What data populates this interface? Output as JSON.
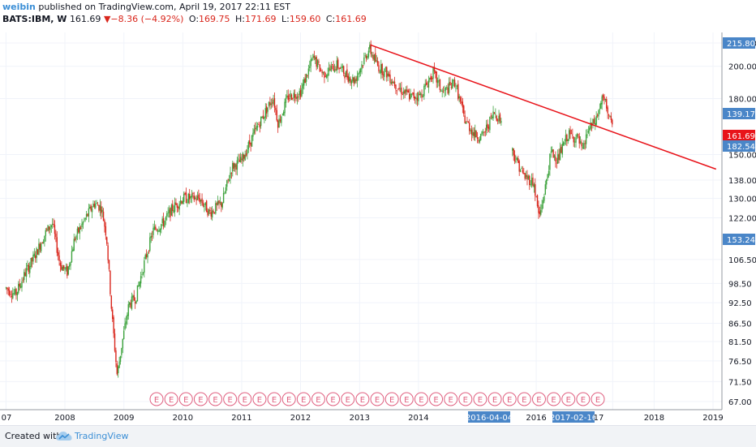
{
  "header": {
    "author": "weibin",
    "published_text": "published on TradingView.com, April 19, 2017 22:11 EST",
    "symbol": "BATS:IBM, W",
    "last": "161.69",
    "change_arrow": "▼",
    "change": "−8.36 (−4.92%)",
    "open_label": "O:",
    "open": "169.75",
    "high_label": "H:",
    "high": "171.69",
    "low_label": "L:",
    "low": "159.60",
    "close_label": "C:",
    "close": "161.69"
  },
  "footer": {
    "created_with": "Created with",
    "brand": "TradingView"
  },
  "colors": {
    "up": "#3ea33e",
    "down": "#d9261c",
    "trendline": "#e8131a",
    "marker_blue": "#4a86c8",
    "price_red": "#e8131a",
    "earnings": "#e06080"
  },
  "chart_data": {
    "type": "candlestick",
    "symbol": "BATS:IBM",
    "interval": "W",
    "scale": "log",
    "y_ticks": [
      215.8,
      200.0,
      180.0,
      150.0,
      138.0,
      130.0,
      122.0,
      106.5,
      98.5,
      92.5,
      86.5,
      81.5,
      76.5,
      71.5,
      67.0
    ],
    "y_tick_labels": [
      "215.80",
      "200.00",
      "180.00",
      "150.00",
      "138.00",
      "130.00",
      "122.00",
      "106.50",
      "98.50",
      "92.50",
      "86.50",
      "81.50",
      "76.50",
      "71.50",
      "67.00"
    ],
    "x_tick_labels": [
      "07",
      "2008",
      "2009",
      "2010",
      "2011",
      "2012",
      "2013",
      "2014",
      "2016-04-04",
      "2016",
      "2017-02-16",
      "17",
      "2018",
      "2019"
    ],
    "x_tick_dates": [
      "2007-01-01",
      "2008-01-01",
      "2009-01-01",
      "2010-01-01",
      "2011-01-01",
      "2012-01-01",
      "2013-01-01",
      "2014-01-01",
      "2016-04-04",
      "2016-01-01",
      "2017-02-16",
      "2017-04-19",
      "2018-01-01",
      "2019-01-01"
    ],
    "price_axis_labels": [
      {
        "value": 215.8,
        "text": "215.80",
        "style": "blue"
      },
      {
        "value": 139.17,
        "text": "139.17",
        "style": "blue"
      },
      {
        "value": 161.69,
        "text": "161.69",
        "style": "red"
      },
      {
        "value": 182.54,
        "text": "182.54",
        "style": "blue"
      },
      {
        "value": 153.24,
        "text": "153.24",
        "style": "blue"
      }
    ],
    "price_path": [
      [
        "2007-01-01",
        97
      ],
      [
        "2007-03-01",
        95
      ],
      [
        "2007-05-01",
        102
      ],
      [
        "2007-07-01",
        108
      ],
      [
        "2007-09-01",
        116
      ],
      [
        "2007-10-15",
        120
      ],
      [
        "2007-12-01",
        105
      ],
      [
        "2008-01-15",
        102
      ],
      [
        "2008-03-01",
        114
      ],
      [
        "2008-05-01",
        121
      ],
      [
        "2008-07-01",
        128
      ],
      [
        "2008-08-15",
        126
      ],
      [
        "2008-09-15",
        115
      ],
      [
        "2008-10-20",
        88
      ],
      [
        "2008-11-20",
        73
      ],
      [
        "2008-12-20",
        81
      ],
      [
        "2009-02-01",
        92
      ],
      [
        "2009-03-15",
        94
      ],
      [
        "2009-05-01",
        104
      ],
      [
        "2009-07-01",
        117
      ],
      [
        "2009-09-01",
        120
      ],
      [
        "2009-11-01",
        126
      ],
      [
        "2010-01-01",
        130
      ],
      [
        "2010-04-15",
        130
      ],
      [
        "2010-06-15",
        124
      ],
      [
        "2010-09-01",
        128
      ],
      [
        "2010-11-01",
        144
      ],
      [
        "2011-01-01",
        147
      ],
      [
        "2011-03-15",
        160
      ],
      [
        "2011-05-01",
        168
      ],
      [
        "2011-07-15",
        181
      ],
      [
        "2011-08-15",
        166
      ],
      [
        "2011-10-15",
        181
      ],
      [
        "2012-01-01",
        184
      ],
      [
        "2012-03-20",
        206
      ],
      [
        "2012-05-20",
        195
      ],
      [
        "2012-08-15",
        201
      ],
      [
        "2012-10-15",
        194
      ],
      [
        "2012-12-01",
        191
      ],
      [
        "2013-03-01",
        212
      ],
      [
        "2013-04-25",
        200
      ],
      [
        "2013-06-15",
        196
      ],
      [
        "2013-09-01",
        186
      ],
      [
        "2013-11-15",
        181
      ],
      [
        "2014-01-15",
        182
      ],
      [
        "2014-04-01",
        196
      ],
      [
        "2014-06-01",
        183
      ],
      [
        "2014-08-15",
        190
      ],
      [
        "2014-10-15",
        168
      ],
      [
        "2014-12-15",
        160
      ],
      [
        "2015-02-01",
        159
      ],
      [
        "2015-04-15",
        172
      ],
      [
        "2015-06-15",
        166
      ],
      [
        "2015-08-15",
        150
      ],
      [
        "2015-10-15",
        140
      ],
      [
        "2015-12-15",
        137
      ],
      [
        "2016-01-20",
        122
      ],
      [
        "2016-02-25",
        134
      ],
      [
        "2016-04-01",
        151
      ],
      [
        "2016-05-15",
        148
      ],
      [
        "2016-07-15",
        160
      ],
      [
        "2016-09-15",
        158
      ],
      [
        "2016-10-15",
        151
      ],
      [
        "2016-11-15",
        162
      ],
      [
        "2017-01-01",
        167
      ],
      [
        "2017-02-16",
        180
      ],
      [
        "2017-03-15",
        175
      ],
      [
        "2017-04-19",
        161.69
      ]
    ],
    "trendline": {
      "start": [
        "2013-03-08",
        214.5
      ],
      "end": [
        "2019-01-20",
        143
      ]
    },
    "earnings_count": 31,
    "earnings_label": "E"
  }
}
